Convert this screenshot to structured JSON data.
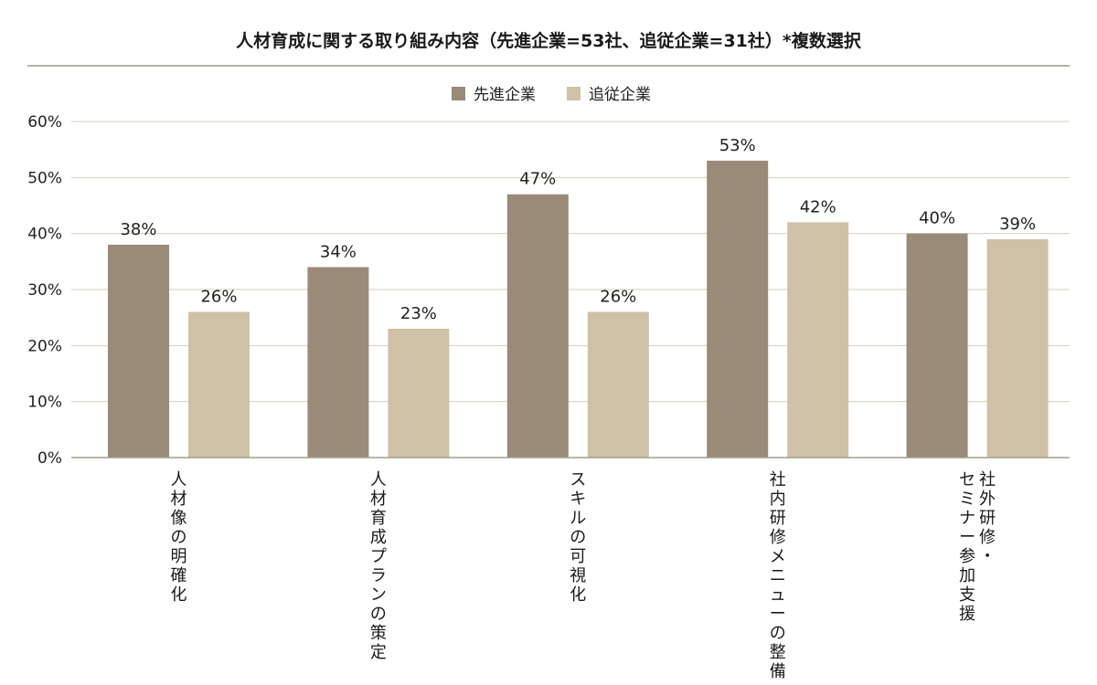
{
  "colors": {
    "series_1": "#9a8a78",
    "series_2": "#cfc1a6",
    "grid": "#d4cfba",
    "axis": "#a39d88",
    "title_rule": "#9c9a82"
  },
  "chart_data": {
    "type": "bar",
    "title": "人材育成に関する取り組み内容（先進企業=53社、追従企業=31社）*複数選択",
    "categories": [
      [
        "人材像の明確化"
      ],
      [
        "人材育成プランの策定"
      ],
      [
        "スキルの可視化"
      ],
      [
        "社内研修メニューの整備"
      ],
      [
        "社外研修・",
        "セミナー参加支援"
      ]
    ],
    "series": [
      {
        "name": "先進企業",
        "values": [
          38,
          34,
          47,
          53,
          40
        ],
        "labels": [
          "38%",
          "34%",
          "47%",
          "53%",
          "40%"
        ]
      },
      {
        "name": "追従企業",
        "values": [
          26,
          23,
          26,
          42,
          39
        ],
        "labels": [
          "26%",
          "23%",
          "26%",
          "42%",
          "39%"
        ]
      }
    ],
    "ylim": [
      0,
      60
    ],
    "yticks": [
      {
        "value": 0,
        "label": "0%"
      },
      {
        "value": 10,
        "label": "10%"
      },
      {
        "value": 20,
        "label": "20%"
      },
      {
        "value": 30,
        "label": "30%"
      },
      {
        "value": 40,
        "label": "40%"
      },
      {
        "value": 50,
        "label": "50%"
      },
      {
        "value": 60,
        "label": "60%"
      }
    ],
    "xlabel": "",
    "ylabel": "",
    "grid": true,
    "legend_position": "top-center"
  }
}
